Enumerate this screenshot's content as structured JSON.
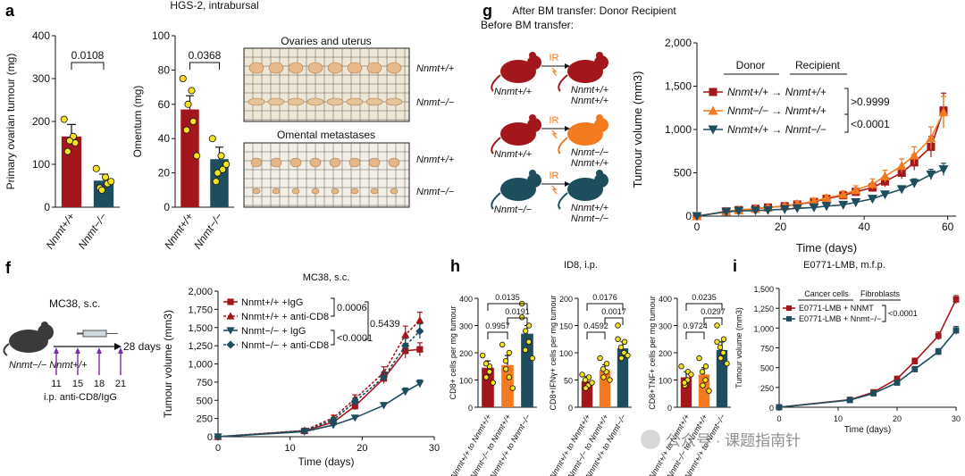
{
  "figure": {
    "panel_letters": [
      "a",
      "g",
      "f",
      "h",
      "i"
    ],
    "colors": {
      "wt": "#a3161c",
      "ko": "#1e4d5e",
      "orange": "#f47a20",
      "dot": "#f5e11e"
    },
    "watermark": "公众号 · 课题指南针"
  },
  "panel_a_text": {
    "group_wt": "Nnmt+/+",
    "group_ko": "Nnmt−/−",
    "hgs_title": "HGS-2, intrabursal",
    "ovaries_title": "Ovaries and uterus",
    "omental_title": "Omental metastases",
    "photo_label_wt": "Nnmt+/+",
    "photo_label_ko": "Nnmt−/−"
  },
  "panel_g_text": {
    "col_before": "Before BM transfer:",
    "col_after": "After BM transfer: Donor Recipient",
    "ir": "IR",
    "mouse_labels": [
      "Nnmt+/+",
      "Nnmt+/+",
      "Nnmt−/−"
    ],
    "after_labels": [
      "Nnmt+/+ Nnmt+/+",
      "Nnmt−/− Nnmt+/+",
      "Nnmt+/+ Nnmt−/−"
    ],
    "legend_donor": "Donor",
    "legend_recipient": "Recipient",
    "legend_rows": [
      "Nnmt+/+ → Nnmt+/+",
      "Nnmt−/− → Nnmt+/+",
      "Nnmt+/+ → Nnmt−/−"
    ],
    "pvals": [
      ">0.9999",
      "<0.0001"
    ]
  },
  "panel_f_text": {
    "model": "MC38, s.c.",
    "mouse_label": "Nnmt−/− Nnmt+/+",
    "days_label": "28 days",
    "days": [
      "11",
      "15",
      "18",
      "21"
    ],
    "treatment": "i.p. anti-CD8/IgG",
    "chart_title": "MC38, s.c.",
    "legend": [
      "Nnmt+/+ +IgG",
      "Nnmt+/+ + anti-CD8",
      "Nnmt−/− + IgG",
      "Nnmt−/− + anti-CD8"
    ],
    "pvals": [
      "0.0006",
      "0.5439",
      "<0.0001"
    ]
  },
  "panel_h_text": {
    "title": "ID8, i.p.",
    "xlabels": [
      "Nnmt+/+ to Nnmt+/+",
      "Nnmt−/− to Nnmt+/+",
      "Nnmt+/+ to Nnmt−/−"
    ]
  },
  "panel_i_text": {
    "title": "E0771-LMB, m.f.p.",
    "hdr_cancer": "Cancer cells",
    "hdr_fib": "Fibroblasts",
    "legend": [
      "E0771-LMB + NNMT",
      "E0771-LMB + Nnmt−/−"
    ],
    "pval": "<0.0001"
  },
  "chart_data": [
    {
      "id": "a1",
      "type": "bar",
      "categories": [
        "Nnmt+/+",
        "Nnmt−/−"
      ],
      "values": [
        165,
        62
      ],
      "errors": [
        28,
        15
      ],
      "points": [
        [
          205,
          165,
          150,
          130,
          155
        ],
        [
          90,
          70,
          55,
          45,
          40,
          60
        ]
      ],
      "ylabel": "Primary ovarian tumour (mg)",
      "ylim": [
        0,
        400
      ],
      "yticks": [
        0,
        100,
        200,
        300,
        400
      ],
      "pvals": [
        {
          "text": "0.0108",
          "a": 0,
          "b": 1
        }
      ]
    },
    {
      "id": "a2",
      "type": "bar",
      "categories": [
        "Nnmt+/+",
        "Nnmt−/−"
      ],
      "values": [
        57,
        28
      ],
      "errors": [
        8,
        7
      ],
      "points": [
        [
          75,
          68,
          50,
          45,
          60,
          30
        ],
        [
          40,
          30,
          22,
          15,
          20,
          25
        ]
      ],
      "ylabel": "Omentum (mg)",
      "ylim": [
        0,
        100
      ],
      "yticks": [
        0,
        20,
        40,
        60,
        80,
        100
      ],
      "pvals": [
        {
          "text": "0.0368",
          "a": 0,
          "b": 1
        }
      ]
    },
    {
      "id": "g",
      "type": "line",
      "xlabel": "Time (days)",
      "ylabel": "Tumour volume (mm3)",
      "xlim": [
        0,
        62
      ],
      "xticks": [
        0,
        20,
        40,
        60
      ],
      "ylim": [
        0,
        2000
      ],
      "yticks": [
        0,
        500,
        1000,
        1500,
        2000
      ],
      "ytick_labels": [
        "0",
        "500",
        "1,000",
        "1,500",
        "2,000"
      ],
      "series": [
        {
          "name": "Nnmt+/+ → Nnmt+/+",
          "color": "#a3161c",
          "marker": "square",
          "x": [
            0,
            7,
            10,
            14,
            17,
            21,
            24,
            28,
            31,
            35,
            38,
            42,
            45,
            49,
            52,
            56,
            59
          ],
          "y": [
            0,
            55,
            70,
            85,
            100,
            115,
            135,
            165,
            200,
            240,
            280,
            330,
            400,
            500,
            620,
            800,
            1220
          ],
          "err": [
            0,
            15,
            15,
            20,
            20,
            25,
            30,
            30,
            35,
            40,
            40,
            50,
            60,
            70,
            90,
            120,
            200
          ]
        },
        {
          "name": "Nnmt−/− → Nnmt+/+",
          "color": "#f47a20",
          "marker": "triangle",
          "x": [
            0,
            7,
            10,
            14,
            17,
            21,
            24,
            28,
            31,
            35,
            38,
            42,
            45,
            49,
            52,
            56,
            59
          ],
          "y": [
            0,
            55,
            70,
            85,
            100,
            115,
            140,
            170,
            210,
            250,
            300,
            370,
            460,
            580,
            700,
            900,
            1200
          ],
          "err": [
            0,
            15,
            15,
            20,
            20,
            25,
            30,
            30,
            35,
            40,
            50,
            60,
            70,
            80,
            100,
            130,
            180
          ]
        },
        {
          "name": "Nnmt+/+ → Nnmt−/−",
          "color": "#1e4d5e",
          "marker": "triangle-down",
          "x": [
            0,
            7,
            10,
            14,
            17,
            21,
            24,
            28,
            31,
            35,
            38,
            42,
            45,
            49,
            52,
            56,
            59
          ],
          "y": [
            0,
            50,
            60,
            65,
            70,
            80,
            90,
            100,
            115,
            130,
            160,
            200,
            250,
            310,
            380,
            480,
            540
          ],
          "err": [
            0,
            10,
            10,
            10,
            10,
            15,
            15,
            15,
            20,
            20,
            25,
            30,
            35,
            40,
            50,
            60,
            70
          ]
        }
      ]
    },
    {
      "id": "f",
      "type": "line",
      "xlabel": "Time (days)",
      "ylabel": "Tumour volume (mm3)",
      "xlim": [
        0,
        30
      ],
      "xticks": [
        0,
        10,
        20,
        30
      ],
      "ylim": [
        0,
        2000
      ],
      "yticks": [
        0,
        250,
        500,
        750,
        1000,
        1250,
        1500,
        1750,
        2000
      ],
      "ytick_labels": [
        "0",
        "250",
        "500",
        "750",
        "1,000",
        "1,250",
        "1,500",
        "1,750",
        "2,000"
      ],
      "series": [
        {
          "name": "Nnmt+/+ +IgG",
          "color": "#a3161c",
          "marker": "square",
          "dashed": false,
          "x": [
            0,
            12,
            16,
            19,
            23,
            26,
            28
          ],
          "y": [
            0,
            80,
            200,
            420,
            800,
            1180,
            1200
          ],
          "err": [
            0,
            15,
            30,
            50,
            70,
            100,
            90
          ]
        },
        {
          "name": "Nnmt+/+ + anti-CD8",
          "color": "#a3161c",
          "marker": "triangle",
          "dashed": true,
          "x": [
            0,
            12,
            16,
            19,
            23,
            26,
            28
          ],
          "y": [
            0,
            85,
            260,
            520,
            880,
            1400,
            1600
          ],
          "err": [
            0,
            15,
            35,
            55,
            80,
            120,
            110
          ]
        },
        {
          "name": "Nnmt−/− + IgG",
          "color": "#1e4d5e",
          "marker": "triangle-down",
          "dashed": false,
          "x": [
            0,
            12,
            16,
            19,
            23,
            26,
            28
          ],
          "y": [
            0,
            70,
            160,
            260,
            430,
            620,
            730
          ],
          "err": [
            0,
            10,
            20,
            30,
            40,
            50,
            50
          ]
        },
        {
          "name": "Nnmt−/− + anti-CD8",
          "color": "#1e4d5e",
          "marker": "diamond",
          "dashed": true,
          "x": [
            0,
            12,
            16,
            19,
            23,
            26,
            28
          ],
          "y": [
            0,
            80,
            230,
            480,
            820,
            1250,
            1450
          ],
          "err": [
            0,
            15,
            30,
            50,
            70,
            100,
            100
          ]
        }
      ]
    },
    {
      "id": "h1",
      "type": "bar",
      "categories": [
        "Nnmt+/+ to Nnmt+/+",
        "Nnmt−/− to Nnmt+/+",
        "Nnmt+/+ to Nnmt−/−"
      ],
      "values": [
        145,
        155,
        270
      ],
      "errors": [
        25,
        35,
        30
      ],
      "colors": [
        "#a3161c",
        "#f47a20",
        "#1e4d5e"
      ],
      "points": [
        [
          190,
          150,
          130,
          110,
          160,
          90
        ],
        [
          230,
          200,
          110,
          140,
          170,
          70
        ],
        [
          380,
          300,
          240,
          280,
          210,
          180,
          330
        ]
      ],
      "ylabel": "CD8+ cells per mg tumour",
      "ylim": [
        0,
        400
      ],
      "yticks": [
        0,
        100,
        200,
        300,
        400
      ],
      "pvals": [
        {
          "text": "0.0135",
          "a": 0,
          "b": 2,
          "level": 2
        },
        {
          "text": "0.0191",
          "a": 1,
          "b": 2,
          "level": 1
        },
        {
          "text": "0.9957",
          "a": 0,
          "b": 1,
          "level": 0
        }
      ]
    },
    {
      "id": "h2",
      "type": "bar",
      "categories": [
        "Nnmt+/+ to Nnmt+/+",
        "Nnmt−/− to Nnmt+/+",
        "Nnmt+/+ to Nnmt−/−"
      ],
      "values": [
        48,
        68,
        108
      ],
      "errors": [
        8,
        10,
        12
      ],
      "colors": [
        "#a3161c",
        "#f47a20",
        "#1e4d5e"
      ],
      "points": [
        [
          60,
          55,
          40,
          35,
          50,
          45
        ],
        [
          90,
          80,
          65,
          55,
          70,
          50
        ],
        [
          150,
          120,
          100,
          90,
          110,
          95,
          125
        ]
      ],
      "ylabel": "CD8+IFNγ+ cells per mg tumour",
      "ylim": [
        0,
        200
      ],
      "yticks": [
        0,
        50,
        100,
        150,
        200
      ],
      "pvals": [
        {
          "text": "0.0176",
          "a": 0,
          "b": 2,
          "level": 2
        },
        {
          "text": "0.0017",
          "a": 1,
          "b": 2,
          "level": 1
        },
        {
          "text": "0.4592",
          "a": 0,
          "b": 1,
          "level": 0
        }
      ]
    },
    {
      "id": "h3",
      "type": "bar",
      "categories": [
        "Nnmt+/+ to Nnmt+/+",
        "Nnmt−/− to Nnmt+/+",
        "Nnmt+/+ to Nnmt−/−"
      ],
      "values": [
        110,
        120,
        210
      ],
      "errors": [
        20,
        25,
        30
      ],
      "colors": [
        "#a3161c",
        "#f47a20",
        "#1e4d5e"
      ],
      "points": [
        [
          150,
          130,
          100,
          80,
          90,
          120
        ],
        [
          180,
          150,
          100,
          80,
          130,
          60
        ],
        [
          300,
          250,
          200,
          180,
          220,
          160,
          240
        ]
      ],
      "ylabel": "CD8+TNF+ cells per mg tumour",
      "ylim": [
        0,
        400
      ],
      "yticks": [
        0,
        100,
        200,
        300,
        400
      ],
      "pvals": [
        {
          "text": "0.0235",
          "a": 0,
          "b": 2,
          "level": 2
        },
        {
          "text": "0.0297",
          "a": 1,
          "b": 2,
          "level": 1
        },
        {
          "text": "0.9724",
          "a": 0,
          "b": 1,
          "level": 0
        }
      ]
    },
    {
      "id": "i",
      "type": "line",
      "xlabel": "Time (days)",
      "ylabel": "Tumour volume (mm3)",
      "xlim": [
        0,
        30
      ],
      "xticks": [
        0,
        10,
        20,
        30
      ],
      "ylim": [
        0,
        1500
      ],
      "yticks": [
        0,
        250,
        500,
        750,
        1000,
        1250,
        1500
      ],
      "ytick_labels": [
        "0",
        "250",
        "500",
        "750",
        "1,000",
        "1,250",
        "1,500"
      ],
      "series": [
        {
          "name": "E0771-LMB + NNMT",
          "color": "#a3161c",
          "marker": "square",
          "x": [
            0,
            12,
            16,
            20,
            23,
            27,
            30
          ],
          "y": [
            0,
            95,
            190,
            360,
            580,
            900,
            1360
          ],
          "err": [
            0,
            10,
            20,
            30,
            40,
            50,
            50
          ]
        },
        {
          "name": "E0771-LMB + Nnmt−/−",
          "color": "#1e4d5e",
          "marker": "square",
          "x": [
            0,
            12,
            16,
            20,
            23,
            27,
            30
          ],
          "y": [
            0,
            90,
            175,
            310,
            480,
            700,
            970
          ],
          "err": [
            0,
            10,
            20,
            30,
            35,
            40,
            50
          ]
        }
      ]
    }
  ]
}
